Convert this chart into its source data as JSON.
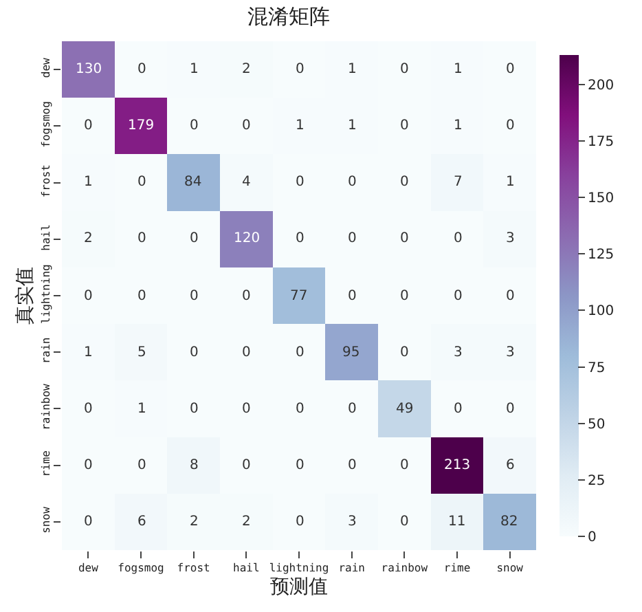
{
  "chart_data": {
    "type": "heatmap",
    "title": "混淆矩阵",
    "xlabel": "预测值",
    "ylabel": "真实值",
    "categories": [
      "dew",
      "fogsmog",
      "frost",
      "hail",
      "lightning",
      "rain",
      "rainbow",
      "rime",
      "snow"
    ],
    "y_categories": [
      "dew",
      "fogsmog",
      "frost",
      "hail",
      "lightning",
      "rain",
      "rainbow",
      "rime",
      "snow"
    ],
    "cells": [
      [
        130,
        0,
        1,
        2,
        0,
        1,
        0,
        1,
        0
      ],
      [
        0,
        179,
        0,
        0,
        1,
        1,
        0,
        1,
        0
      ],
      [
        1,
        0,
        84,
        4,
        0,
        0,
        0,
        7,
        1
      ],
      [
        2,
        0,
        0,
        120,
        0,
        0,
        0,
        0,
        3
      ],
      [
        0,
        0,
        0,
        0,
        77,
        0,
        0,
        0,
        0
      ],
      [
        1,
        5,
        0,
        0,
        0,
        95,
        0,
        3,
        3
      ],
      [
        0,
        1,
        0,
        0,
        0,
        0,
        49,
        0,
        0
      ],
      [
        0,
        0,
        8,
        0,
        0,
        0,
        0,
        213,
        6
      ],
      [
        0,
        6,
        2,
        2,
        0,
        3,
        0,
        11,
        82
      ]
    ],
    "clim": [
      0,
      213
    ],
    "cticks": [
      0,
      25,
      50,
      75,
      100,
      125,
      150,
      175,
      200
    ],
    "data_labels": true
  }
}
